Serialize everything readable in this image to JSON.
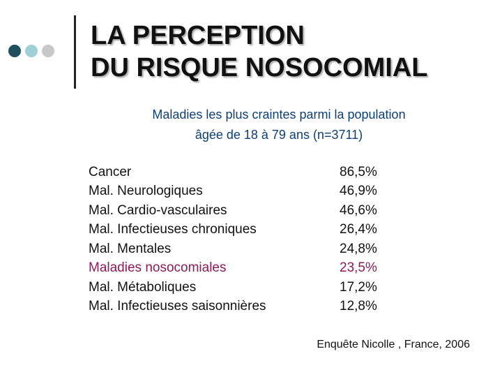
{
  "title": {
    "line1": "LA PERCEPTION",
    "line2": "DU RISQUE NOSOCOMIAL"
  },
  "subtitle": {
    "line1": "Maladies les plus craintes parmi la population",
    "line2": "âgée de 18 à 79 ans (n=3711)"
  },
  "rows": [
    {
      "label": "Cancer",
      "value": "86,5%"
    },
    {
      "label": "Mal. Neurologiques",
      "value": "46,9%"
    },
    {
      "label": "Mal. Cardio-vasculaires",
      "value": "46,6%"
    },
    {
      "label": "Mal. Infectieuses chroniques",
      "value": "26,4%"
    },
    {
      "label": "Mal. Mentales",
      "value": "24,8%"
    },
    {
      "label": "Maladies nosocomiales",
      "value": "23,5%"
    },
    {
      "label": "Mal. Métaboliques",
      "value": "17,2%"
    },
    {
      "label": "Mal. Infectieuses saisonnières",
      "value": "12,8%"
    }
  ],
  "source": "Enquête Nicolle , France, 2006",
  "colors": {
    "dot1": "#1f4f5c",
    "dot2": "#9fd0d8",
    "dot3": "#c8c8c8",
    "subtitle": "#0d3f73",
    "highlight": "#8b1a5a"
  }
}
